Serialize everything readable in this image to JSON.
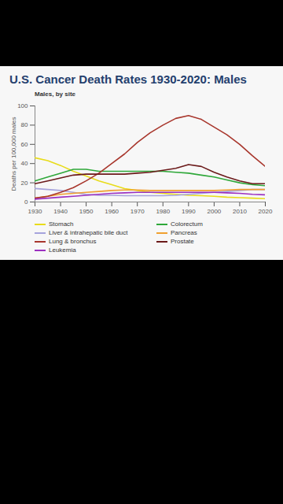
{
  "chart_data": {
    "type": "line",
    "title": "U.S. Cancer Death Rates 1930-2020: Males",
    "subtitle": "Males, by site",
    "y_label": "Deaths per 100,000 males",
    "x": [
      1930,
      1935,
      1940,
      1945,
      1950,
      1955,
      1960,
      1965,
      1970,
      1975,
      1980,
      1985,
      1990,
      1995,
      2000,
      2005,
      2010,
      2015,
      2020
    ],
    "series": [
      {
        "name": "Stomach",
        "color": "#e8dc1a",
        "values": [
          46,
          43,
          38,
          32,
          27,
          22,
          18,
          14,
          12,
          10,
          9,
          8,
          7,
          6.5,
          6,
          5,
          4.5,
          4,
          3.5
        ]
      },
      {
        "name": "Colorectum",
        "color": "#2fa83a",
        "values": [
          22,
          26,
          30,
          34,
          34,
          32,
          32,
          32,
          32,
          32,
          32,
          31,
          30,
          28,
          26,
          23,
          20,
          18,
          17
        ]
      },
      {
        "name": "Liver & intrahepatic bile duct",
        "color": "#a6a3dc",
        "values": [
          14,
          13,
          12,
          10,
          8,
          7,
          7,
          6.5,
          6.5,
          6.5,
          6.5,
          7,
          8,
          9,
          10,
          11,
          12,
          13,
          13
        ]
      },
      {
        "name": "Pancreas",
        "color": "#f0a030",
        "values": [
          4,
          6,
          8,
          9,
          10,
          11,
          12,
          12.5,
          12.5,
          12,
          12,
          12,
          12,
          12,
          12,
          12.5,
          13,
          13,
          13
        ]
      },
      {
        "name": "Lung & bronchus",
        "color": "#a8362c",
        "values": [
          4,
          6,
          10,
          15,
          22,
          30,
          40,
          50,
          62,
          72,
          80,
          87,
          90,
          86,
          78,
          70,
          60,
          48,
          37
        ]
      },
      {
        "name": "Prostate",
        "color": "#6b1a1a",
        "values": [
          19,
          22,
          25,
          28,
          29,
          29,
          29,
          29,
          30,
          31,
          33,
          35,
          39,
          37,
          31,
          26,
          22,
          19,
          19
        ]
      },
      {
        "name": "Leukemia",
        "color": "#9b30c0",
        "values": [
          3,
          4,
          5,
          6,
          7,
          8,
          9,
          9.5,
          10,
          10,
          10,
          10,
          10,
          10,
          10,
          9.5,
          9,
          8,
          7.5
        ]
      }
    ],
    "xlim": [
      1930,
      2020
    ],
    "xticks": [
      1930,
      1940,
      1950,
      1960,
      1970,
      1980,
      1990,
      2000,
      2010,
      2020
    ],
    "ylim": [
      0,
      100
    ],
    "yticks": [
      0,
      20,
      40,
      60,
      80,
      100
    ],
    "grid": false
  }
}
